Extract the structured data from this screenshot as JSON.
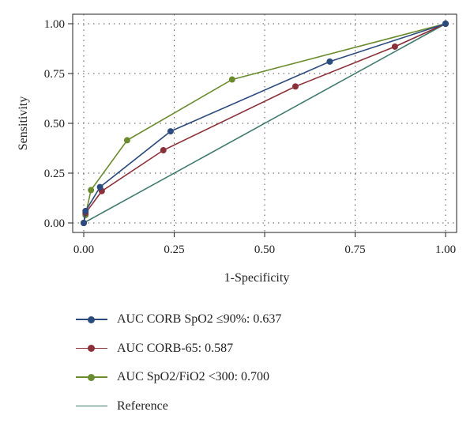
{
  "chart_data": {
    "type": "line",
    "xlabel": "1-Specificity",
    "ylabel": "Sensitivity",
    "xlim": [
      0,
      1
    ],
    "ylim": [
      0,
      1
    ],
    "xticks": [
      "0.00",
      "0.25",
      "0.50",
      "0.75",
      "1.00"
    ],
    "yticks": [
      "0.00",
      "0.25",
      "0.50",
      "0.75",
      "1.00"
    ],
    "grid": true,
    "legend_position": "bottom",
    "series": [
      {
        "name": "AUC CORB SpO2 ≤90%: 0.637",
        "color": "#2b4b7e",
        "markers": true,
        "x": [
          0.0,
          0.005,
          0.045,
          0.24,
          0.68,
          1.0
        ],
        "y": [
          0.0,
          0.06,
          0.18,
          0.46,
          0.81,
          1.0
        ]
      },
      {
        "name": "AUC CORB-65: 0.587",
        "color": "#8b3038",
        "markers": true,
        "x": [
          0.0,
          0.005,
          0.05,
          0.22,
          0.585,
          0.86,
          1.0
        ],
        "y": [
          0.0,
          0.05,
          0.16,
          0.365,
          0.685,
          0.885,
          1.0
        ]
      },
      {
        "name": "AUC SpO2/FiO2 <300: 0.700",
        "color": "#6b8c2e",
        "markers": true,
        "x": [
          0.0,
          0.005,
          0.02,
          0.12,
          0.41,
          1.0
        ],
        "y": [
          0.0,
          0.04,
          0.165,
          0.415,
          0.72,
          1.0
        ]
      },
      {
        "name": "Reference",
        "color": "#3f7a70",
        "markers": false,
        "x": [
          0.0,
          1.0
        ],
        "y": [
          0.0,
          1.0
        ]
      }
    ]
  }
}
